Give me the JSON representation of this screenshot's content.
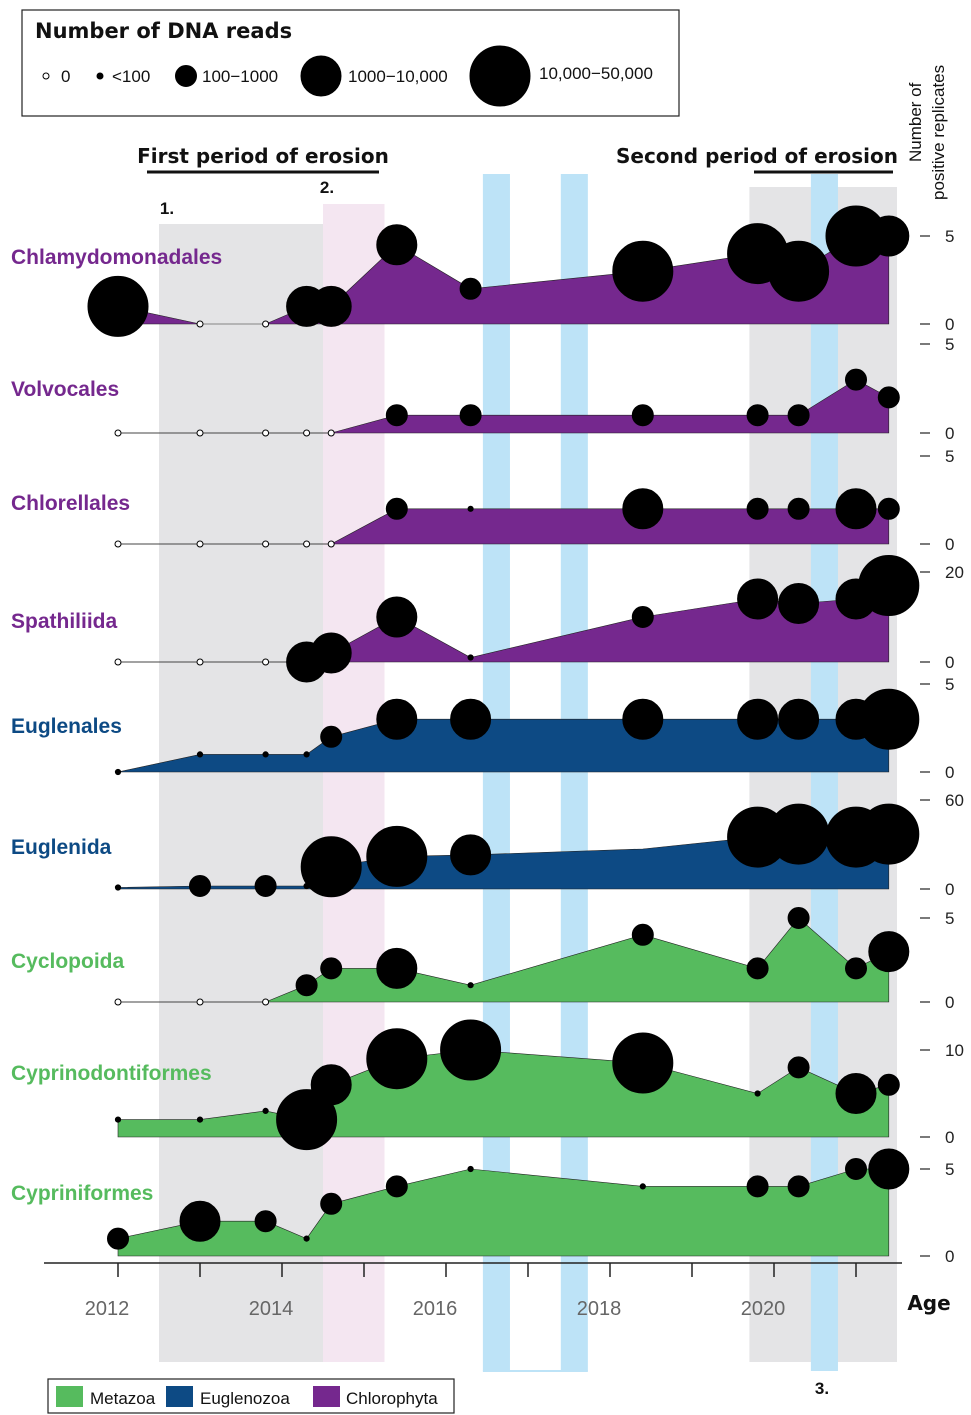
{
  "chart_data": {
    "type": "area",
    "xlabel": "Age",
    "ylabel": "Number of positive replicates",
    "x_ticks": [
      "2012",
      "2014",
      "2016",
      "2018",
      "2020"
    ],
    "xlim": [
      2011.8,
      2021.5
    ],
    "periods": [
      {
        "label": "First period of erosion",
        "from": 2012.5,
        "to": 2014.5
      },
      {
        "label": "Second period of erosion",
        "from": 2019.7,
        "to": 2021.5
      }
    ],
    "markers": [
      {
        "label": "1.",
        "x": 2012.5
      },
      {
        "label": "2.",
        "x": 2014.5
      },
      {
        "label": "3.",
        "x": 2020.4
      }
    ],
    "highlight_bands": [
      {
        "from": 2014.5,
        "to": 2015.25,
        "color": "#f4e6f1"
      },
      {
        "from": 2016.45,
        "to": 2016.78,
        "color": "#bde3f7"
      },
      {
        "from": 2017.4,
        "to": 2017.73,
        "color": "#bde3f7"
      },
      {
        "from": 2020.45,
        "to": 2020.78,
        "color": "#bde3f7"
      }
    ],
    "size_legend": {
      "title": "Number of DNA reads",
      "items": [
        "0",
        "<100",
        "100−1000",
        "1000−10,000",
        "10,000−50,000"
      ]
    },
    "group_legend": [
      {
        "name": "Metazoa",
        "color": "#56bb5e"
      },
      {
        "name": "Euglenozoa",
        "color": "#0d4a84"
      },
      {
        "name": "Chlorophyta",
        "color": "#75288e"
      }
    ],
    "series": [
      {
        "name": "Chlamydomonadales",
        "group": "Chlorophyta",
        "ymax": 5,
        "ticks": [
          "5",
          "0"
        ],
        "x": [
          2012.0,
          2013.0,
          2013.8,
          2014.3,
          2014.6,
          2015.4,
          2016.3,
          2018.4,
          2019.8,
          2020.3,
          2021.0,
          2021.4
        ],
        "y": [
          1,
          0,
          0,
          1,
          1,
          4.5,
          2,
          3,
          4,
          3,
          5,
          5
        ],
        "size": [
          4,
          0,
          0,
          3,
          3,
          3,
          2,
          4,
          4,
          4,
          4,
          3
        ]
      },
      {
        "name": "Volvocales",
        "group": "Chlorophyta",
        "ymax": 5,
        "ticks": [
          "5",
          "0"
        ],
        "x": [
          2012.0,
          2013.0,
          2013.8,
          2014.3,
          2014.6,
          2015.4,
          2016.3,
          2018.4,
          2019.8,
          2020.3,
          2021.0,
          2021.4
        ],
        "y": [
          0,
          0,
          0,
          0,
          0,
          1,
          1,
          1,
          1,
          1,
          3,
          2
        ],
        "size": [
          0,
          0,
          0,
          0,
          0,
          2,
          2,
          2,
          2,
          2,
          2,
          2
        ]
      },
      {
        "name": "Chlorellales",
        "group": "Chlorophyta",
        "ymax": 5,
        "ticks": [
          "5",
          "0"
        ],
        "x": [
          2012.0,
          2013.0,
          2013.8,
          2014.3,
          2014.6,
          2015.4,
          2016.3,
          2018.4,
          2019.8,
          2020.3,
          2021.0,
          2021.4
        ],
        "y": [
          0,
          0,
          0,
          0,
          0,
          2,
          2,
          2,
          2,
          2,
          2,
          2
        ],
        "size": [
          0,
          0,
          0,
          0,
          0,
          2,
          1,
          3,
          2,
          2,
          3,
          2
        ]
      },
      {
        "name": "Spathiliida",
        "group": "Chlorophyta",
        "ymax": 20,
        "ticks": [
          "20",
          "0"
        ],
        "x": [
          2012.0,
          2013.0,
          2013.8,
          2014.3,
          2014.6,
          2015.4,
          2016.3,
          2018.4,
          2019.8,
          2020.3,
          2021.0,
          2021.4
        ],
        "y": [
          0,
          0,
          0,
          0,
          2,
          10,
          1,
          10,
          14,
          13,
          14,
          17
        ],
        "size": [
          0,
          0,
          0,
          3,
          3,
          3,
          1,
          2,
          3,
          3,
          3,
          4
        ]
      },
      {
        "name": "Euglenales",
        "group": "Euglenozoa",
        "ymax": 5,
        "ticks": [
          "5",
          "0"
        ],
        "x": [
          2012.0,
          2013.0,
          2013.8,
          2014.3,
          2014.6,
          2015.4,
          2016.3,
          2018.4,
          2019.8,
          2020.3,
          2021.0,
          2021.4
        ],
        "y": [
          0,
          1,
          1,
          1,
          2,
          3,
          3,
          3,
          3,
          3,
          3,
          3
        ],
        "size": [
          1,
          1,
          1,
          1,
          2,
          3,
          3,
          3,
          3,
          3,
          3,
          4
        ]
      },
      {
        "name": "Euglenida",
        "group": "Euglenozoa",
        "ymax": 60,
        "ticks": [
          "60",
          "0"
        ],
        "x": [
          2012.0,
          2013.0,
          2013.8,
          2014.3,
          2014.6,
          2015.4,
          2016.3,
          2018.4,
          2019.8,
          2020.3,
          2021.0,
          2021.4
        ],
        "y": [
          1,
          2,
          2,
          2,
          15,
          22,
          23,
          27,
          35,
          37,
          35,
          37
        ],
        "size": [
          1,
          2,
          2,
          1,
          4,
          4,
          3,
          0,
          4,
          4,
          4,
          4
        ]
      },
      {
        "name": "Cyclopoida",
        "group": "Metazoa",
        "ymax": 5,
        "ticks": [
          "5",
          "0"
        ],
        "x": [
          2012.0,
          2013.0,
          2013.8,
          2014.3,
          2014.6,
          2015.4,
          2016.3,
          2018.4,
          2019.8,
          2020.3,
          2021.0,
          2021.4
        ],
        "y": [
          0,
          0,
          0,
          1,
          2,
          2,
          1,
          4,
          2,
          5,
          2,
          3
        ],
        "size": [
          0,
          0,
          0,
          2,
          2,
          3,
          1,
          2,
          2,
          2,
          2,
          3
        ]
      },
      {
        "name": "Cyprinodontiformes",
        "group": "Metazoa",
        "ymax": 10,
        "ticks": [
          "10",
          "0"
        ],
        "x": [
          2012.0,
          2013.0,
          2013.8,
          2014.3,
          2014.6,
          2015.4,
          2016.3,
          2018.4,
          2019.8,
          2020.3,
          2021.0,
          2021.4
        ],
        "y": [
          2,
          2,
          3,
          2,
          6,
          9,
          10,
          8.5,
          5,
          8,
          5,
          6
        ],
        "size": [
          1,
          1,
          1,
          4,
          3,
          4,
          4,
          4,
          1,
          2,
          3,
          2
        ]
      },
      {
        "name": "Cypriniformes",
        "group": "Metazoa",
        "ymax": 5,
        "ticks": [
          "5",
          "0"
        ],
        "x": [
          2012.0,
          2013.0,
          2013.8,
          2014.3,
          2014.6,
          2015.4,
          2016.3,
          2018.4,
          2019.8,
          2020.3,
          2021.0,
          2021.4
        ],
        "y": [
          1,
          2,
          2,
          1,
          3,
          4,
          5,
          4,
          4,
          4,
          5,
          5
        ],
        "size": [
          2,
          3,
          2,
          1,
          2,
          2,
          1,
          1,
          2,
          2,
          2,
          3
        ]
      }
    ]
  }
}
